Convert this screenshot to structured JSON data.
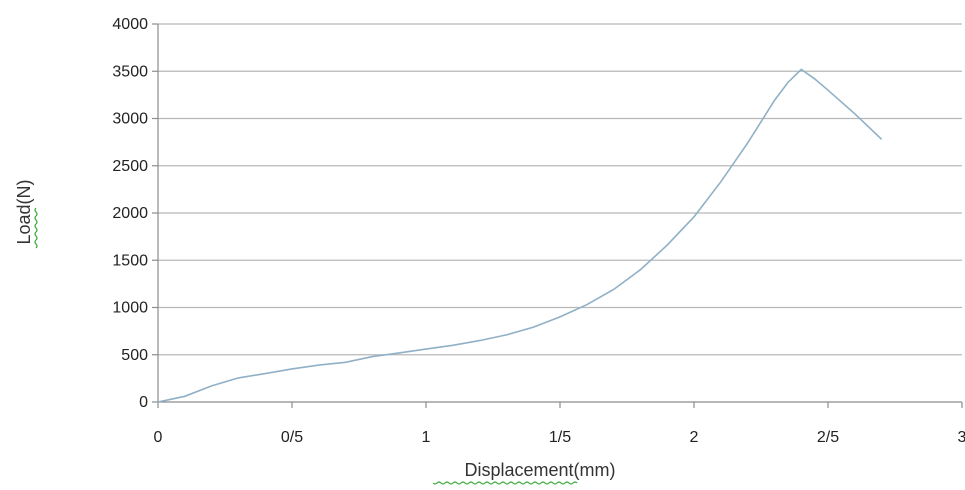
{
  "chart_data": {
    "type": "line",
    "title": "",
    "xlabel": "Displacement(mm)",
    "ylabel": "Load(N)",
    "xlim": [
      0,
      3
    ],
    "ylim": [
      0,
      4000
    ],
    "x_ticks": [
      0,
      0.5,
      1,
      1.5,
      2,
      2.5,
      3
    ],
    "x_tick_labels": [
      "0",
      "0/5",
      "1",
      "1/5",
      "2",
      "2/5",
      "3"
    ],
    "y_ticks": [
      0,
      500,
      1000,
      1500,
      2000,
      2500,
      3000,
      3500,
      4000
    ],
    "y_tick_labels": [
      "0",
      "500",
      "1000",
      "1500",
      "2000",
      "2500",
      "3000",
      "3500",
      "4000"
    ],
    "grid": "horizontal",
    "legend": "none",
    "colors": {
      "line": "#8fb0c6",
      "grid": "#b8b8b8",
      "axis": "#8c8c8c"
    },
    "series": [
      {
        "x": [
          0,
          0.05,
          0.1,
          0.2,
          0.3,
          0.4,
          0.5,
          0.6,
          0.7,
          0.8,
          0.9,
          1.0,
          1.1,
          1.2,
          1.3,
          1.4,
          1.5,
          1.6,
          1.7,
          1.8,
          1.9,
          2.0,
          2.1,
          2.2,
          2.3,
          2.35,
          2.4,
          2.45,
          2.5,
          2.6,
          2.7
        ],
        "y": [
          0,
          30,
          60,
          170,
          255,
          300,
          350,
          390,
          420,
          480,
          520,
          560,
          600,
          650,
          710,
          790,
          900,
          1030,
          1190,
          1400,
          1660,
          1960,
          2330,
          2740,
          3190,
          3380,
          3520,
          3420,
          3300,
          3050,
          2780
        ]
      }
    ]
  }
}
